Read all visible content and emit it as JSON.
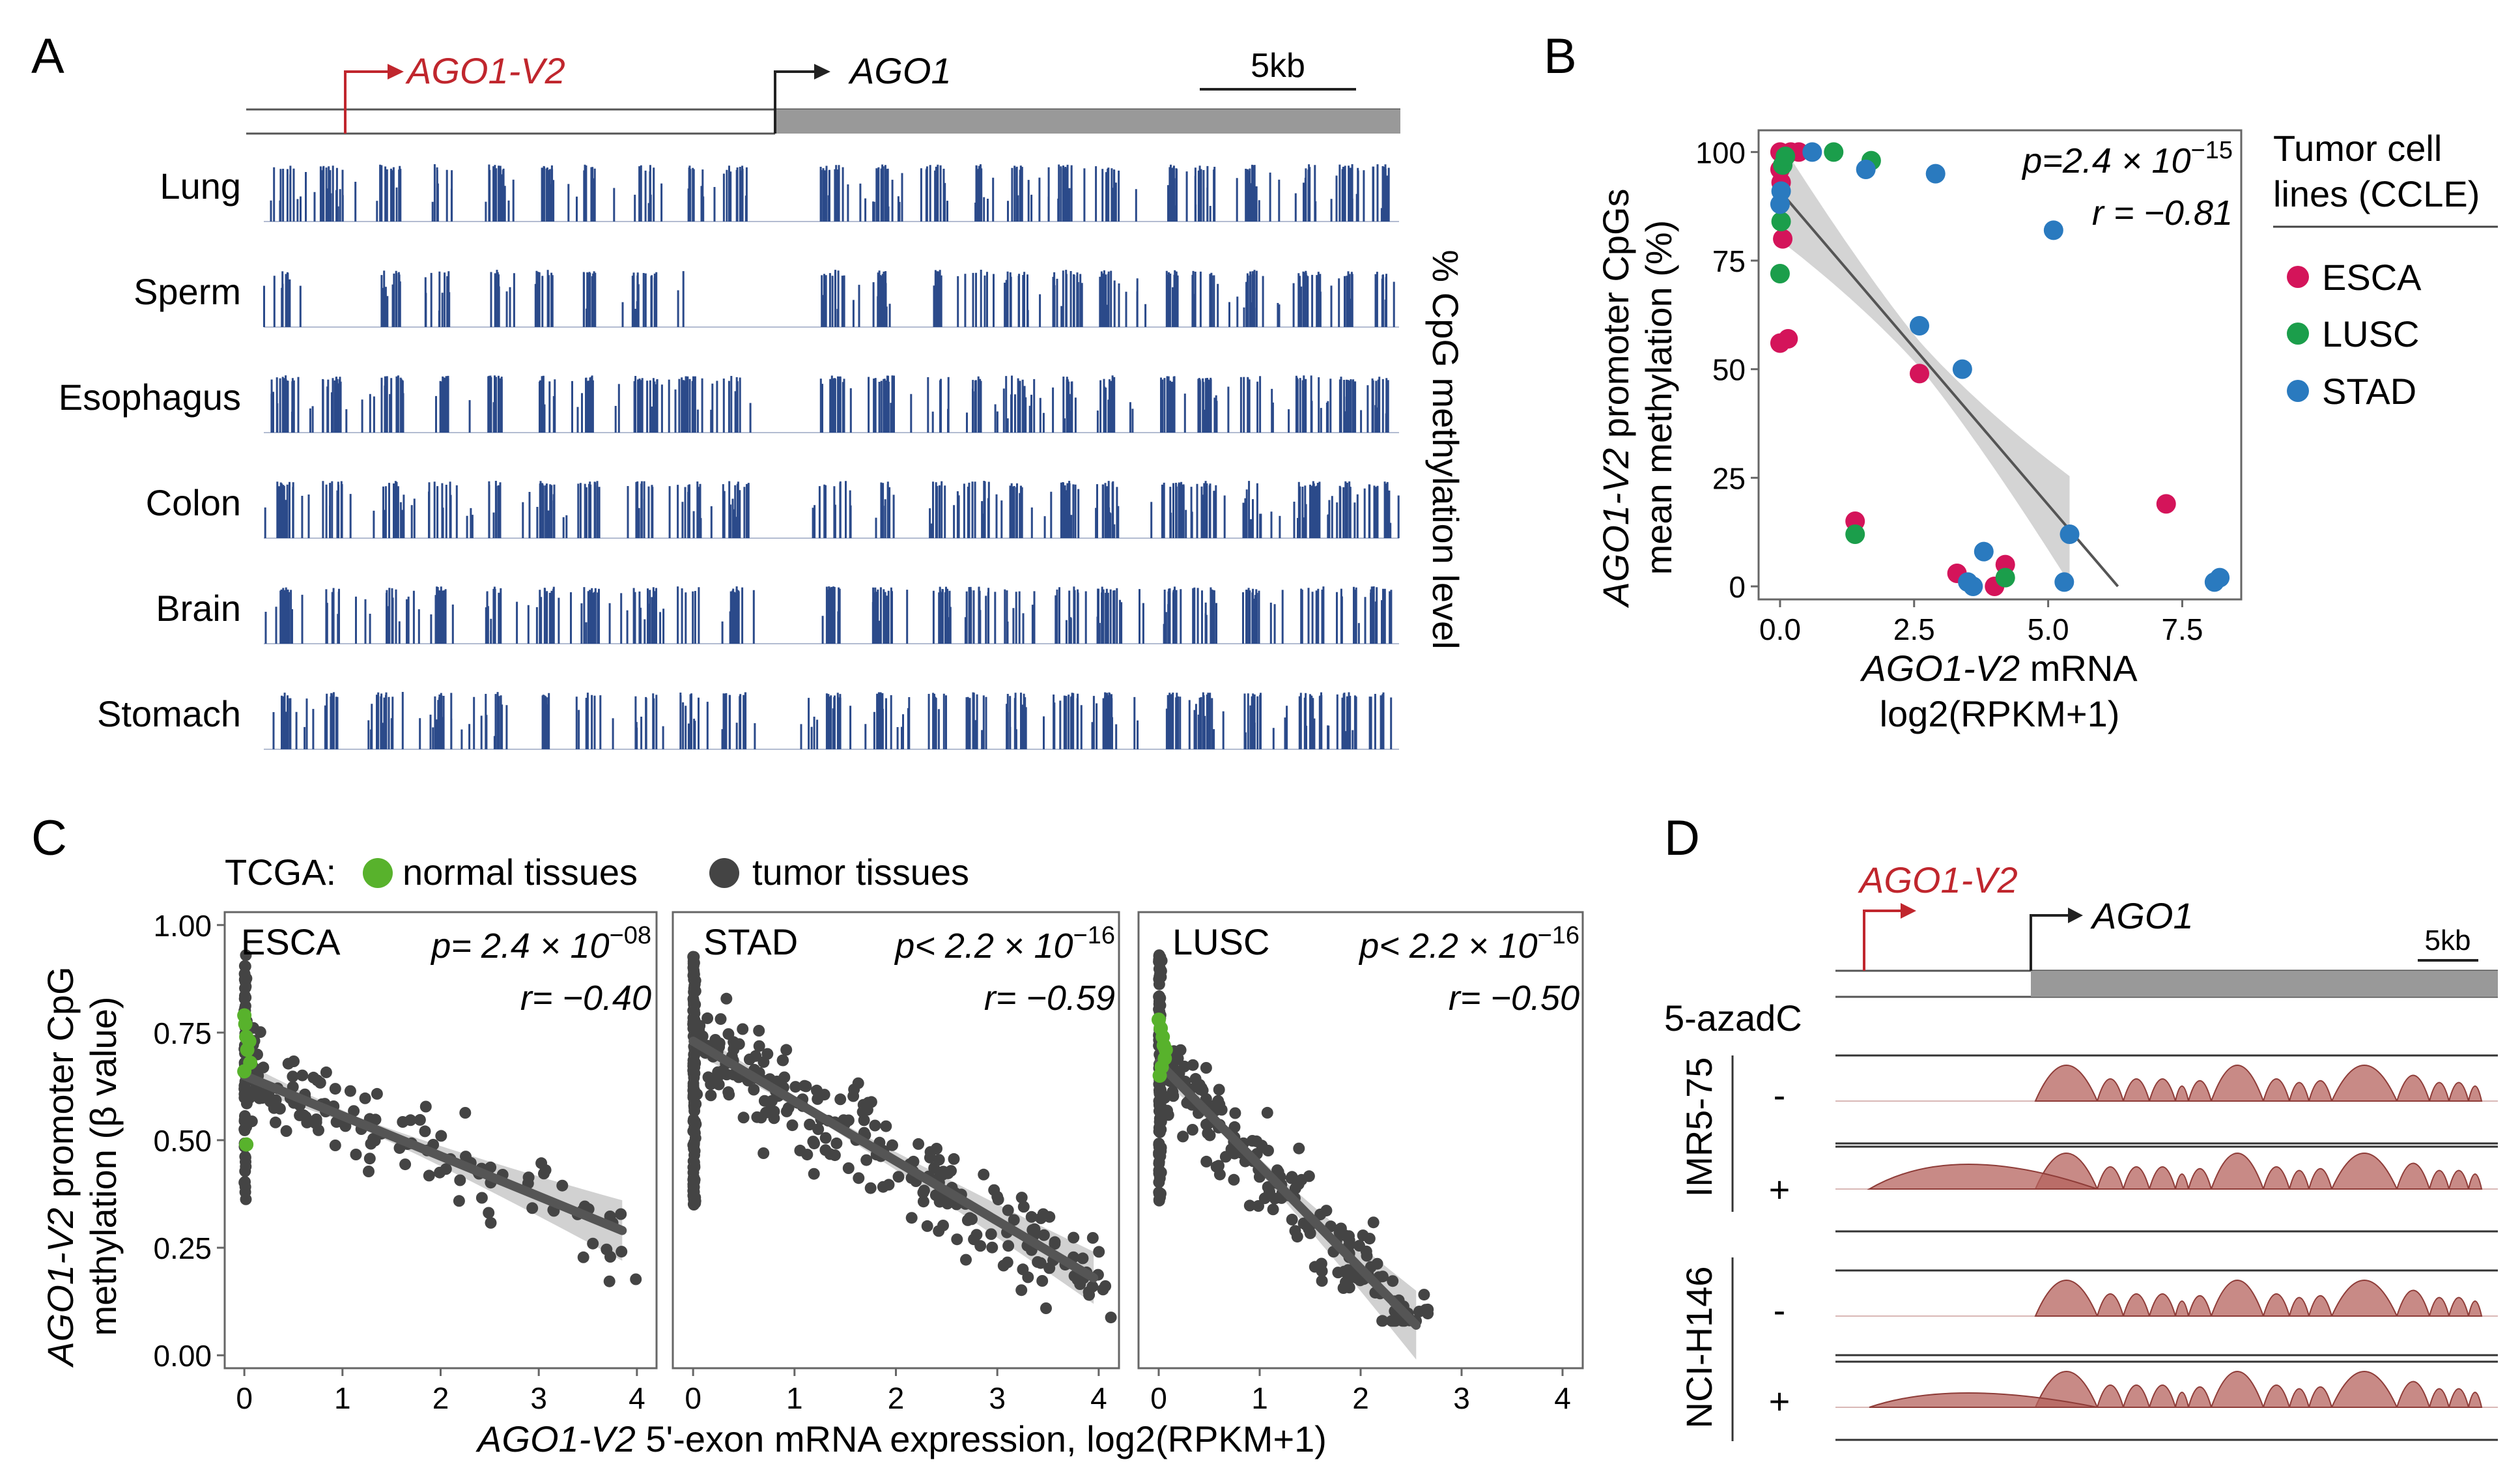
{
  "colors": {
    "blue_track": "#2b4a8a",
    "red_gene": "#c0262d",
    "gray_gene": "#999999",
    "esca": "#d4145a",
    "lusc": "#1b9e4b",
    "stad": "#2a7abf",
    "normal": "#58b22c",
    "tumor": "#444444",
    "arc": "#b5635e",
    "ribbon": "#cccccc"
  },
  "panelA": {
    "label": "A",
    "gene_v2": "AGO1-V2",
    "gene": "AGO1",
    "scale": "5kb",
    "tracks": [
      "Lung",
      "Sperm",
      "Esophagus",
      "Colon",
      "Brain",
      "Stomach"
    ],
    "ylabel": "% CpG methylation level"
  },
  "panelB": {
    "label": "B",
    "ylabel_italic": "AGO1-V2",
    "ylabel_rest": " promoter CpGs",
    "ylabel2": "mean methylation (%)",
    "xlabel_italic": "AGO1-V2",
    "xlabel_rest": " mRNA",
    "xlabel2": "log2(RPKM+1)",
    "p_text": "p=2.4 × 10",
    "p_exp": "−15",
    "r_text": "r = −0.81",
    "legend_title1": "Tumor cell",
    "legend_title2": "lines (CCLE)",
    "legend": [
      "ESCA",
      "LUSC",
      "STAD"
    ]
  },
  "panelC": {
    "label": "C",
    "legend_prefix": "TCGA:",
    "legend_normal": "normal tissues",
    "legend_tumor": "tumor tissues",
    "ylabel_italic": "AGO1-V2",
    "ylabel_rest": " promoter CpG",
    "ylabel2": "methylation (β value)",
    "xlabel_italic": "AGO1-V2",
    "xlabel_rest": " 5'-exon mRNA expression, log2(RPKM+1)",
    "subpanels": [
      {
        "name": "ESCA",
        "p_text": "p= 2.4 × 10",
        "p_exp": "−08",
        "r_text": "r= −0.40"
      },
      {
        "name": "STAD",
        "p_text": "p< 2.2 × 10",
        "p_exp": "−16",
        "r_text": "r= −0.59"
      },
      {
        "name": "LUSC",
        "p_text": "p< 2.2 × 10",
        "p_exp": "−16",
        "r_text": "r= −0.50"
      }
    ]
  },
  "panelD": {
    "label": "D",
    "gene_v2": "AGO1-V2",
    "gene": "AGO1",
    "scale": "5kb",
    "treatment": "5-azadC",
    "cell_lines": [
      "IMR5-75",
      "NCI-H146"
    ],
    "minus": "-",
    "plus": "+"
  },
  "chart_data": [
    {
      "type": "scatter",
      "panel": "B",
      "xlabel": "AGO1-V2 mRNA log2(RPKM+1)",
      "ylabel": "AGO1-V2 promoter CpGs mean methylation (%)",
      "xlim": [
        -0.4,
        8.6
      ],
      "ylim": [
        -3,
        105
      ],
      "xticks": [
        "0.0",
        "2.5",
        "5.0",
        "7.5"
      ],
      "yticks": [
        "0",
        "25",
        "50",
        "75",
        "100"
      ],
      "fit": {
        "x0": 0,
        "y0": 91,
        "x1": 6.3,
        "y1": 0
      },
      "series": [
        {
          "name": "ESCA",
          "points": [
            [
              0,
              100
            ],
            [
              0.1,
              99
            ],
            [
              0.2,
              100
            ],
            [
              0.35,
              100
            ],
            [
              0,
              96
            ],
            [
              0.05,
              80
            ],
            [
              0,
              56
            ],
            [
              0.15,
              57
            ],
            [
              2.6,
              49
            ],
            [
              1.4,
              15
            ],
            [
              3.3,
              3
            ],
            [
              4.0,
              0
            ],
            [
              4.2,
              5
            ],
            [
              7.2,
              19
            ],
            [
              0.02,
              93
            ]
          ]
        },
        {
          "name": "LUSC",
          "points": [
            [
              0.05,
              97
            ],
            [
              0.1,
              99
            ],
            [
              1.0,
              100
            ],
            [
              1.7,
              98
            ],
            [
              0.02,
              84
            ],
            [
              0,
              72
            ],
            [
              1.4,
              12
            ],
            [
              4.2,
              2
            ]
          ]
        },
        {
          "name": "STAD",
          "points": [
            [
              0.6,
              100
            ],
            [
              1.6,
              96
            ],
            [
              2.9,
              95
            ],
            [
              5.1,
              82
            ],
            [
              0,
              88
            ],
            [
              0.02,
              91
            ],
            [
              2.6,
              60
            ],
            [
              3.4,
              50
            ],
            [
              5.4,
              12
            ],
            [
              3.5,
              1
            ],
            [
              3.6,
              0
            ],
            [
              3.8,
              8
            ],
            [
              5.3,
              1
            ],
            [
              8.1,
              1
            ],
            [
              8.2,
              2
            ]
          ]
        }
      ]
    },
    {
      "type": "scatter",
      "panel": "C",
      "xlabel": "AGO1-V2 5'-exon mRNA expression, log2(RPKM+1)",
      "ylabel": "AGO1-V2 promoter CpG methylation (β value)",
      "xlim": [
        -0.2,
        4.2
      ],
      "ylim": [
        -0.03,
        1.03
      ],
      "xticks": [
        "0",
        "1",
        "2",
        "3",
        "4"
      ],
      "yticks": [
        "0.00",
        "0.25",
        "0.50",
        "0.75",
        "1.00"
      ],
      "panels": [
        {
          "name": "ESCA",
          "fit": {
            "x0": 0,
            "y0": 0.65,
            "x1": 3.85,
            "y1": 0.29,
            "ci": 0.06
          },
          "normal_x": [
            0,
            0.01,
            0.02,
            0.03,
            0.05,
            0.06,
            0.02,
            0
          ],
          "normal_y": [
            0.79,
            0.77,
            0.74,
            0.71,
            0.73,
            0.68,
            0.49,
            0.66
          ]
        },
        {
          "name": "STAD",
          "fit": {
            "x0": 0,
            "y0": 0.73,
            "x1": 3.95,
            "y1": 0.18,
            "ci": 0.05
          },
          "normal_x": [],
          "normal_y": []
        },
        {
          "name": "LUSC",
          "fit": {
            "x0": 0,
            "y0": 0.68,
            "x1": 2.55,
            "y1": 0.07,
            "ci": 0.07
          },
          "normal_x": [
            0,
            0.02,
            0.04,
            0.05,
            0.06,
            0.03,
            0.01,
            0.07
          ],
          "normal_y": [
            0.78,
            0.76,
            0.74,
            0.72,
            0.69,
            0.67,
            0.65,
            0.71
          ]
        }
      ]
    }
  ]
}
